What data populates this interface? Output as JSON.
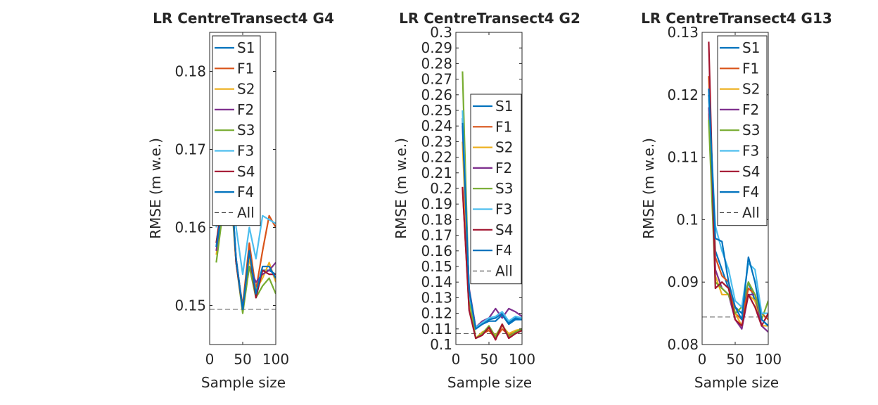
{
  "colors": {
    "S1": "#0072BD",
    "F1": "#D95319",
    "S2": "#EDB120",
    "F2": "#7E2F8E",
    "S3": "#77AC30",
    "F3": "#4DBEEE",
    "S4": "#A2142F",
    "F4": "#0072BD",
    "All": "#262626",
    "axis": "#262626",
    "background": "#ffffff"
  },
  "chart_data": [
    {
      "type": "line",
      "title": "LR CentreTransect4 G4",
      "xlabel": "Sample size",
      "ylabel": "RMSE (m w.e.)",
      "xlim": [
        0,
        100
      ],
      "ylim": [
        0.145,
        0.185
      ],
      "xticks": [
        0,
        50,
        100
      ],
      "yticks": [
        0.15,
        0.16,
        0.17,
        0.18
      ],
      "ytick_labels": [
        "0.15",
        "0.16",
        "0.17",
        "0.18"
      ],
      "legend_position": "top-right",
      "x": [
        10,
        20,
        30,
        40,
        50,
        60,
        70,
        80,
        90,
        100
      ],
      "series": [
        {
          "name": "S1",
          "values": [
            0.1575,
            0.164,
            0.17,
            0.1555,
            0.1495,
            0.1575,
            0.1515,
            0.1545,
            0.1545,
            0.154
          ]
        },
        {
          "name": "F1",
          "values": [
            0.158,
            0.163,
            0.168,
            0.1555,
            0.15,
            0.158,
            0.152,
            0.157,
            0.1615,
            0.16
          ]
        },
        {
          "name": "S2",
          "values": [
            0.1565,
            0.162,
            0.167,
            0.156,
            0.1495,
            0.156,
            0.152,
            0.1535,
            0.1555,
            0.153
          ]
        },
        {
          "name": "F2",
          "values": [
            0.157,
            0.163,
            0.168,
            0.156,
            0.1495,
            0.155,
            0.153,
            0.154,
            0.1545,
            0.1555
          ]
        },
        {
          "name": "S3",
          "values": [
            0.1555,
            0.162,
            0.167,
            0.1555,
            0.149,
            0.155,
            0.151,
            0.1525,
            0.1535,
            0.1515
          ]
        },
        {
          "name": "F3",
          "values": [
            0.16,
            0.166,
            0.172,
            0.16,
            0.154,
            0.16,
            0.156,
            0.1615,
            0.161,
            0.1605
          ]
        },
        {
          "name": "S4",
          "values": [
            0.158,
            0.164,
            0.169,
            0.1555,
            0.1495,
            0.157,
            0.151,
            0.1545,
            0.154,
            0.154
          ]
        },
        {
          "name": "F4",
          "values": [
            0.1575,
            0.163,
            0.169,
            0.156,
            0.1495,
            0.157,
            0.1515,
            0.155,
            0.155,
            0.1535
          ]
        }
      ],
      "reference_line": {
        "name": "All",
        "value": 0.1495,
        "style": "dashed"
      }
    },
    {
      "type": "line",
      "title": "LR CentreTransect4 G2",
      "xlabel": "Sample size",
      "ylabel": "RMSE (m w.e.)",
      "xlim": [
        0,
        100
      ],
      "ylim": [
        0.1,
        0.3
      ],
      "xticks": [
        0,
        50,
        100
      ],
      "yticks": [
        0.1,
        0.11,
        0.12,
        0.13,
        0.14,
        0.15,
        0.16,
        0.17,
        0.18,
        0.19,
        0.2,
        0.21,
        0.22,
        0.23,
        0.24,
        0.25,
        0.26,
        0.27,
        0.28,
        0.29,
        0.3
      ],
      "ytick_labels": [
        "0.1",
        "0.11",
        "0.12",
        "0.13",
        "0.14",
        "0.15",
        "0.16",
        "0.17",
        "0.18",
        "0.19",
        "0.2",
        "0.21",
        "0.22",
        "0.23",
        "0.24",
        "0.25",
        "0.26",
        "0.27",
        "0.28",
        "0.29",
        "0.3"
      ],
      "legend_position": "middle-right",
      "x": [
        10,
        20,
        30,
        40,
        50,
        60,
        70,
        80,
        90,
        100
      ],
      "series": [
        {
          "name": "S1",
          "values": [
            0.245,
            0.135,
            0.11,
            0.114,
            0.116,
            0.117,
            0.12,
            0.114,
            0.117,
            0.117
          ]
        },
        {
          "name": "F1",
          "values": [
            0.2,
            0.123,
            0.104,
            0.107,
            0.109,
            0.104,
            0.11,
            0.106,
            0.108,
            0.109
          ]
        },
        {
          "name": "S2",
          "values": [
            0.23,
            0.125,
            0.104,
            0.108,
            0.11,
            0.106,
            0.112,
            0.107,
            0.109,
            0.11
          ]
        },
        {
          "name": "F2",
          "values": [
            0.24,
            0.136,
            0.111,
            0.115,
            0.117,
            0.123,
            0.117,
            0.123,
            0.121,
            0.118
          ]
        },
        {
          "name": "S3",
          "values": [
            0.275,
            0.13,
            0.104,
            0.107,
            0.112,
            0.105,
            0.113,
            0.105,
            0.108,
            0.11
          ]
        },
        {
          "name": "F3",
          "values": [
            0.25,
            0.132,
            0.111,
            0.114,
            0.117,
            0.118,
            0.121,
            0.115,
            0.118,
            0.117
          ]
        },
        {
          "name": "S4",
          "values": [
            0.201,
            0.122,
            0.104,
            0.106,
            0.111,
            0.103,
            0.113,
            0.104,
            0.107,
            0.109
          ]
        },
        {
          "name": "F4",
          "values": [
            0.242,
            0.135,
            0.11,
            0.113,
            0.115,
            0.115,
            0.119,
            0.113,
            0.116,
            0.116
          ]
        }
      ],
      "reference_line": {
        "name": "All",
        "value": 0.107,
        "style": "dashed"
      }
    },
    {
      "type": "line",
      "title": "LR CentreTransect4 G13",
      "xlabel": "Sample size",
      "ylabel": "RMSE (m w.e.)",
      "xlim": [
        0,
        100
      ],
      "ylim": [
        0.08,
        0.13
      ],
      "xticks": [
        0,
        50,
        100
      ],
      "yticks": [
        0.08,
        0.09,
        0.1,
        0.11,
        0.12,
        0.13
      ],
      "ytick_labels": [
        "0.08",
        "0.09",
        "0.1",
        "0.11",
        "0.12",
        "0.13"
      ],
      "legend_position": "top-right",
      "x": [
        10,
        20,
        30,
        40,
        50,
        60,
        70,
        80,
        90,
        100
      ],
      "series": [
        {
          "name": "S1",
          "values": [
            0.12,
            0.095,
            0.092,
            0.089,
            0.086,
            0.085,
            0.09,
            0.087,
            0.084,
            0.083
          ]
        },
        {
          "name": "F1",
          "values": [
            0.123,
            0.094,
            0.091,
            0.09,
            0.085,
            0.084,
            0.089,
            0.088,
            0.085,
            0.084
          ]
        },
        {
          "name": "S2",
          "values": [
            0.117,
            0.091,
            0.088,
            0.088,
            0.085,
            0.083,
            0.088,
            0.087,
            0.083,
            0.083
          ]
        },
        {
          "name": "F2",
          "values": [
            0.118,
            0.092,
            0.089,
            0.088,
            0.084,
            0.0825,
            0.088,
            0.088,
            0.083,
            0.082
          ]
        },
        {
          "name": "S3",
          "values": [
            0.116,
            0.09,
            0.089,
            0.088,
            0.085,
            0.086,
            0.09,
            0.088,
            0.084,
            0.087
          ]
        },
        {
          "name": "F3",
          "values": [
            0.12,
            0.099,
            0.095,
            0.092,
            0.087,
            0.086,
            0.093,
            0.092,
            0.085,
            0.085
          ]
        },
        {
          "name": "S4",
          "values": [
            0.1285,
            0.089,
            0.09,
            0.089,
            0.084,
            0.083,
            0.088,
            0.086,
            0.083,
            0.085
          ]
        },
        {
          "name": "F4",
          "values": [
            0.121,
            0.097,
            0.0965,
            0.09,
            0.086,
            0.084,
            0.094,
            0.09,
            0.084,
            0.083
          ]
        }
      ],
      "reference_line": {
        "name": "All",
        "value": 0.0844,
        "style": "dashed"
      }
    }
  ]
}
